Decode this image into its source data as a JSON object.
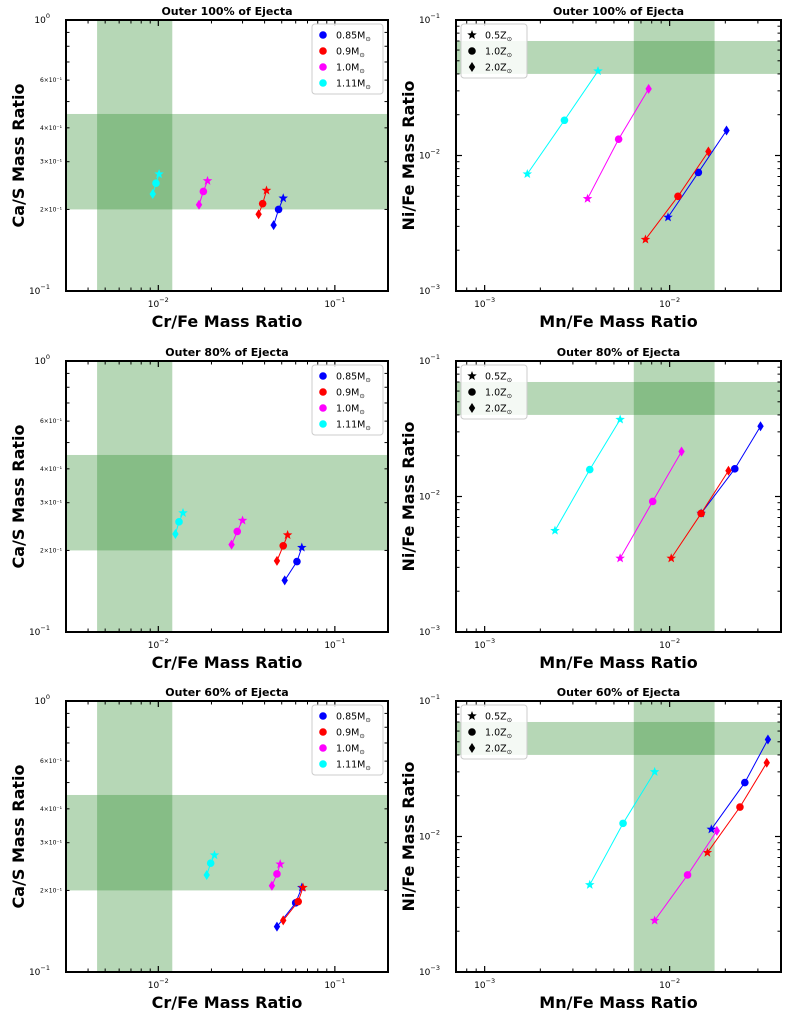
{
  "figure": {
    "band_color": "#2e8b2e",
    "band_opacity": 0.35,
    "mass_legend_title": "",
    "metallicity_legend_title": ""
  },
  "legends": {
    "mass": [
      {
        "label": "0.85M",
        "sub": "⊙",
        "color": "#0000ff"
      },
      {
        "label": "0.9M",
        "sub": "⊙",
        "color": "#ff0000"
      },
      {
        "label": "1.0M",
        "sub": "⊙",
        "color": "#ff00ff"
      },
      {
        "label": "1.11M",
        "sub": "⊙",
        "color": "#00ffff"
      }
    ],
    "metallicity": [
      {
        "label": "0.5Z",
        "sub": "⊙",
        "marker": "star"
      },
      {
        "label": "1.0Z",
        "sub": "⊙",
        "marker": "circle"
      },
      {
        "label": "2.0Z",
        "sub": "⊙",
        "marker": "diamond"
      }
    ]
  },
  "chart_data": [
    {
      "type": "scatter",
      "panel": "row1-left",
      "title": "Outer 100% of Ejecta",
      "xlabel": "Cr/Fe Mass Ratio",
      "ylabel": "Ca/S Mass Ratio",
      "xscale": "log",
      "yscale": "log",
      "xlim": [
        0.003,
        0.2
      ],
      "ylim": [
        0.1,
        1.0
      ],
      "major_x_ticks": [
        {
          "value": 0.01,
          "label": "10",
          "exp": "−2"
        },
        {
          "value": 0.1,
          "label": "10",
          "exp": "−1"
        }
      ],
      "major_y_ticks": [
        {
          "value": 0.1,
          "label": "10",
          "exp": "−1"
        },
        {
          "value": 1.0,
          "label": "10",
          "exp": "0"
        }
      ],
      "minor_y_ticks": [
        {
          "value": 0.2,
          "label": "2×10⁻¹"
        },
        {
          "value": 0.3,
          "label": "3×10⁻¹"
        },
        {
          "value": 0.4,
          "label": "4×10⁻¹"
        },
        {
          "value": 0.6,
          "label": "6×10⁻¹"
        }
      ],
      "bands": {
        "x": [
          0.0045,
          0.012
        ],
        "y": [
          0.2,
          0.45
        ]
      },
      "legend": "mass",
      "legend_position": "top-right",
      "series": [
        {
          "name": "0.85M",
          "color": "#0000ff",
          "points": [
            {
              "x": 0.051,
              "y": 0.22,
              "marker": "star"
            },
            {
              "x": 0.048,
              "y": 0.2,
              "marker": "circle"
            },
            {
              "x": 0.045,
              "y": 0.175,
              "marker": "diamond"
            }
          ]
        },
        {
          "name": "0.9M",
          "color": "#ff0000",
          "points": [
            {
              "x": 0.041,
              "y": 0.235,
              "marker": "star"
            },
            {
              "x": 0.039,
              "y": 0.21,
              "marker": "circle"
            },
            {
              "x": 0.037,
              "y": 0.192,
              "marker": "diamond"
            }
          ]
        },
        {
          "name": "1.0M",
          "color": "#ff00ff",
          "points": [
            {
              "x": 0.019,
              "y": 0.255,
              "marker": "star"
            },
            {
              "x": 0.018,
              "y": 0.233,
              "marker": "circle"
            },
            {
              "x": 0.017,
              "y": 0.208,
              "marker": "diamond"
            }
          ]
        },
        {
          "name": "1.11M",
          "color": "#00ffff",
          "points": [
            {
              "x": 0.0101,
              "y": 0.27,
              "marker": "star"
            },
            {
              "x": 0.0097,
              "y": 0.25,
              "marker": "circle"
            },
            {
              "x": 0.0093,
              "y": 0.228,
              "marker": "diamond"
            }
          ]
        }
      ]
    },
    {
      "type": "scatter",
      "panel": "row1-right",
      "title": "Outer 100% of Ejecta",
      "xlabel": "Mn/Fe Mass Ratio",
      "ylabel": "Ni/Fe Mass Ratio",
      "xscale": "log",
      "yscale": "log",
      "xlim": [
        0.0007,
        0.04
      ],
      "ylim": [
        0.001,
        0.1
      ],
      "major_x_ticks": [
        {
          "value": 0.001,
          "label": "10",
          "exp": "−3"
        },
        {
          "value": 0.01,
          "label": "10",
          "exp": "−2"
        }
      ],
      "major_y_ticks": [
        {
          "value": 0.001,
          "label": "10",
          "exp": "−3"
        },
        {
          "value": 0.01,
          "label": "10",
          "exp": "−2"
        },
        {
          "value": 0.1,
          "label": "10",
          "exp": "−1"
        }
      ],
      "minor_y_ticks": [],
      "bands": {
        "x": [
          0.0064,
          0.0175
        ],
        "y": [
          0.04,
          0.07
        ]
      },
      "legend": "metallicity",
      "legend_position": "top-left",
      "series": [
        {
          "name": "0.85M",
          "color": "#0000ff",
          "points": [
            {
              "x": 0.0098,
              "y": 0.0035,
              "marker": "star"
            },
            {
              "x": 0.0143,
              "y": 0.0075,
              "marker": "circle"
            },
            {
              "x": 0.0203,
              "y": 0.0153,
              "marker": "diamond"
            }
          ]
        },
        {
          "name": "0.9M",
          "color": "#ff0000",
          "points": [
            {
              "x": 0.0074,
              "y": 0.0024,
              "marker": "star"
            },
            {
              "x": 0.0111,
              "y": 0.005,
              "marker": "circle"
            },
            {
              "x": 0.0162,
              "y": 0.0107,
              "marker": "diamond"
            }
          ]
        },
        {
          "name": "1.0M",
          "color": "#ff00ff",
          "points": [
            {
              "x": 0.0036,
              "y": 0.0048,
              "marker": "star"
            },
            {
              "x": 0.0053,
              "y": 0.0132,
              "marker": "circle"
            },
            {
              "x": 0.0077,
              "y": 0.031,
              "marker": "diamond"
            }
          ]
        },
        {
          "name": "1.11M",
          "color": "#00ffff",
          "points": [
            {
              "x": 0.0017,
              "y": 0.0073,
              "marker": "star"
            },
            {
              "x": 0.0027,
              "y": 0.0182,
              "marker": "circle"
            },
            {
              "x": 0.0041,
              "y": 0.042,
              "marker": "star"
            }
          ]
        }
      ]
    },
    {
      "type": "scatter",
      "panel": "row2-left",
      "title": "Outer 80% of Ejecta",
      "xlabel": "Cr/Fe Mass Ratio",
      "ylabel": "Ca/S Mass Ratio",
      "xscale": "log",
      "yscale": "log",
      "xlim": [
        0.003,
        0.2
      ],
      "ylim": [
        0.1,
        1.0
      ],
      "major_x_ticks": [
        {
          "value": 0.01,
          "label": "10",
          "exp": "−2"
        },
        {
          "value": 0.1,
          "label": "10",
          "exp": "−1"
        }
      ],
      "major_y_ticks": [
        {
          "value": 0.1,
          "label": "10",
          "exp": "−1"
        },
        {
          "value": 1.0,
          "label": "10",
          "exp": "0"
        }
      ],
      "minor_y_ticks": [
        {
          "value": 0.2,
          "label": "2×10⁻¹"
        },
        {
          "value": 0.3,
          "label": "3×10⁻¹"
        },
        {
          "value": 0.4,
          "label": "4×10⁻¹"
        },
        {
          "value": 0.6,
          "label": "6×10⁻¹"
        }
      ],
      "bands": {
        "x": [
          0.0045,
          0.012
        ],
        "y": [
          0.2,
          0.45
        ]
      },
      "legend": "mass",
      "legend_position": "top-right",
      "series": [
        {
          "name": "0.85M",
          "color": "#0000ff",
          "points": [
            {
              "x": 0.065,
              "y": 0.205,
              "marker": "star"
            },
            {
              "x": 0.061,
              "y": 0.182,
              "marker": "circle"
            },
            {
              "x": 0.052,
              "y": 0.155,
              "marker": "diamond"
            }
          ]
        },
        {
          "name": "0.9M",
          "color": "#ff0000",
          "points": [
            {
              "x": 0.054,
              "y": 0.228,
              "marker": "star"
            },
            {
              "x": 0.051,
              "y": 0.208,
              "marker": "circle"
            },
            {
              "x": 0.047,
              "y": 0.183,
              "marker": "diamond"
            }
          ]
        },
        {
          "name": "1.0M",
          "color": "#ff00ff",
          "points": [
            {
              "x": 0.03,
              "y": 0.258,
              "marker": "star"
            },
            {
              "x": 0.028,
              "y": 0.235,
              "marker": "circle"
            },
            {
              "x": 0.026,
              "y": 0.21,
              "marker": "diamond"
            }
          ]
        },
        {
          "name": "1.11M",
          "color": "#00ffff",
          "points": [
            {
              "x": 0.0138,
              "y": 0.275,
              "marker": "star"
            },
            {
              "x": 0.0131,
              "y": 0.255,
              "marker": "circle"
            },
            {
              "x": 0.0125,
              "y": 0.23,
              "marker": "diamond"
            }
          ]
        }
      ]
    },
    {
      "type": "scatter",
      "panel": "row2-right",
      "title": "Outer 80% of Ejecta",
      "xlabel": "Mn/Fe Mass Ratio",
      "ylabel": "Ni/Fe Mass Ratio",
      "xscale": "log",
      "yscale": "log",
      "xlim": [
        0.0007,
        0.04
      ],
      "ylim": [
        0.001,
        0.1
      ],
      "major_x_ticks": [
        {
          "value": 0.001,
          "label": "10",
          "exp": "−3"
        },
        {
          "value": 0.01,
          "label": "10",
          "exp": "−2"
        }
      ],
      "major_y_ticks": [
        {
          "value": 0.001,
          "label": "10",
          "exp": "−3"
        },
        {
          "value": 0.01,
          "label": "10",
          "exp": "−2"
        },
        {
          "value": 0.1,
          "label": "10",
          "exp": "−1"
        }
      ],
      "minor_y_ticks": [],
      "bands": {
        "x": [
          0.0064,
          0.0175
        ],
        "y": [
          0.04,
          0.07
        ]
      },
      "legend": "metallicity",
      "legend_position": "top-left",
      "series": [
        {
          "name": "0.85M",
          "color": "#0000ff",
          "points": [
            {
              "x": 0.0148,
              "y": 0.0075,
              "marker": "star"
            },
            {
              "x": 0.0225,
              "y": 0.016,
              "marker": "circle"
            },
            {
              "x": 0.031,
              "y": 0.033,
              "marker": "diamond"
            }
          ]
        },
        {
          "name": "0.9M",
          "color": "#ff0000",
          "points": [
            {
              "x": 0.0102,
              "y": 0.0035,
              "marker": "star"
            },
            {
              "x": 0.0148,
              "y": 0.0075,
              "marker": "circle"
            },
            {
              "x": 0.0208,
              "y": 0.0155,
              "marker": "diamond"
            }
          ]
        },
        {
          "name": "1.0M",
          "color": "#ff00ff",
          "points": [
            {
              "x": 0.0054,
              "y": 0.0035,
              "marker": "star"
            },
            {
              "x": 0.0081,
              "y": 0.0092,
              "marker": "circle"
            },
            {
              "x": 0.0116,
              "y": 0.0215,
              "marker": "diamond"
            }
          ]
        },
        {
          "name": "1.11M",
          "color": "#00ffff",
          "points": [
            {
              "x": 0.0024,
              "y": 0.0056,
              "marker": "star"
            },
            {
              "x": 0.0037,
              "y": 0.0158,
              "marker": "circle"
            },
            {
              "x": 0.0054,
              "y": 0.037,
              "marker": "star"
            }
          ]
        }
      ]
    },
    {
      "type": "scatter",
      "panel": "row3-left",
      "title": "Outer 60% of Ejecta",
      "xlabel": "Cr/Fe Mass Ratio",
      "ylabel": "Ca/S Mass Ratio",
      "xscale": "log",
      "yscale": "log",
      "xlim": [
        0.003,
        0.2
      ],
      "ylim": [
        0.1,
        1.0
      ],
      "major_x_ticks": [
        {
          "value": 0.01,
          "label": "10",
          "exp": "−2"
        },
        {
          "value": 0.1,
          "label": "10",
          "exp": "−1"
        }
      ],
      "major_y_ticks": [
        {
          "value": 0.1,
          "label": "10",
          "exp": "−1"
        },
        {
          "value": 1.0,
          "label": "10",
          "exp": "0"
        }
      ],
      "minor_y_ticks": [
        {
          "value": 0.2,
          "label": "2×10⁻¹"
        },
        {
          "value": 0.3,
          "label": "3×10⁻¹"
        },
        {
          "value": 0.4,
          "label": "4×10⁻¹"
        },
        {
          "value": 0.6,
          "label": "6×10⁻¹"
        }
      ],
      "bands": {
        "x": [
          0.0045,
          0.012
        ],
        "y": [
          0.2,
          0.45
        ]
      },
      "legend": "mass",
      "legend_position": "top-right",
      "series": [
        {
          "name": "0.85M",
          "color": "#0000ff",
          "points": [
            {
              "x": 0.065,
              "y": 0.205,
              "marker": "star"
            },
            {
              "x": 0.06,
              "y": 0.18,
              "marker": "circle"
            },
            {
              "x": 0.047,
              "y": 0.147,
              "marker": "diamond"
            }
          ]
        },
        {
          "name": "0.9M",
          "color": "#ff0000",
          "points": [
            {
              "x": 0.066,
              "y": 0.205,
              "marker": "star"
            },
            {
              "x": 0.062,
              "y": 0.182,
              "marker": "circle"
            },
            {
              "x": 0.051,
              "y": 0.155,
              "marker": "diamond"
            }
          ]
        },
        {
          "name": "1.0M",
          "color": "#ff00ff",
          "points": [
            {
              "x": 0.049,
              "y": 0.25,
              "marker": "star"
            },
            {
              "x": 0.047,
              "y": 0.23,
              "marker": "circle"
            },
            {
              "x": 0.044,
              "y": 0.208,
              "marker": "diamond"
            }
          ]
        },
        {
          "name": "1.11M",
          "color": "#00ffff",
          "points": [
            {
              "x": 0.0208,
              "y": 0.27,
              "marker": "star"
            },
            {
              "x": 0.0198,
              "y": 0.252,
              "marker": "circle"
            },
            {
              "x": 0.0188,
              "y": 0.228,
              "marker": "diamond"
            }
          ]
        }
      ]
    },
    {
      "type": "scatter",
      "panel": "row3-right",
      "title": "Outer 60% of Ejecta",
      "xlabel": "Mn/Fe Mass Ratio",
      "ylabel": "Ni/Fe Mass Ratio",
      "xscale": "log",
      "yscale": "log",
      "xlim": [
        0.0007,
        0.04
      ],
      "ylim": [
        0.001,
        0.1
      ],
      "major_x_ticks": [
        {
          "value": 0.001,
          "label": "10",
          "exp": "−3"
        },
        {
          "value": 0.01,
          "label": "10",
          "exp": "−2"
        }
      ],
      "major_y_ticks": [
        {
          "value": 0.001,
          "label": "10",
          "exp": "−3"
        },
        {
          "value": 0.01,
          "label": "10",
          "exp": "−2"
        },
        {
          "value": 0.1,
          "label": "10",
          "exp": "−1"
        }
      ],
      "minor_y_ticks": [],
      "bands": {
        "x": [
          0.0064,
          0.0175
        ],
        "y": [
          0.04,
          0.07
        ]
      },
      "legend": "metallicity",
      "legend_position": "top-left",
      "series": [
        {
          "name": "0.85M",
          "color": "#0000ff",
          "points": [
            {
              "x": 0.0168,
              "y": 0.0113,
              "marker": "star"
            },
            {
              "x": 0.0255,
              "y": 0.025,
              "marker": "circle"
            },
            {
              "x": 0.034,
              "y": 0.052,
              "marker": "diamond"
            }
          ]
        },
        {
          "name": "0.9M",
          "color": "#ff0000",
          "points": [
            {
              "x": 0.016,
              "y": 0.0076,
              "marker": "star"
            },
            {
              "x": 0.024,
              "y": 0.0165,
              "marker": "circle"
            },
            {
              "x": 0.0335,
              "y": 0.035,
              "marker": "diamond"
            }
          ]
        },
        {
          "name": "1.0M",
          "color": "#ff00ff",
          "points": [
            {
              "x": 0.0083,
              "y": 0.0024,
              "marker": "star"
            },
            {
              "x": 0.0125,
              "y": 0.0052,
              "marker": "circle"
            },
            {
              "x": 0.018,
              "y": 0.011,
              "marker": "diamond"
            }
          ]
        },
        {
          "name": "1.11M",
          "color": "#00ffff",
          "points": [
            {
              "x": 0.0037,
              "y": 0.0044,
              "marker": "star"
            },
            {
              "x": 0.0056,
              "y": 0.0125,
              "marker": "circle"
            },
            {
              "x": 0.0083,
              "y": 0.03,
              "marker": "star"
            }
          ]
        }
      ]
    }
  ]
}
